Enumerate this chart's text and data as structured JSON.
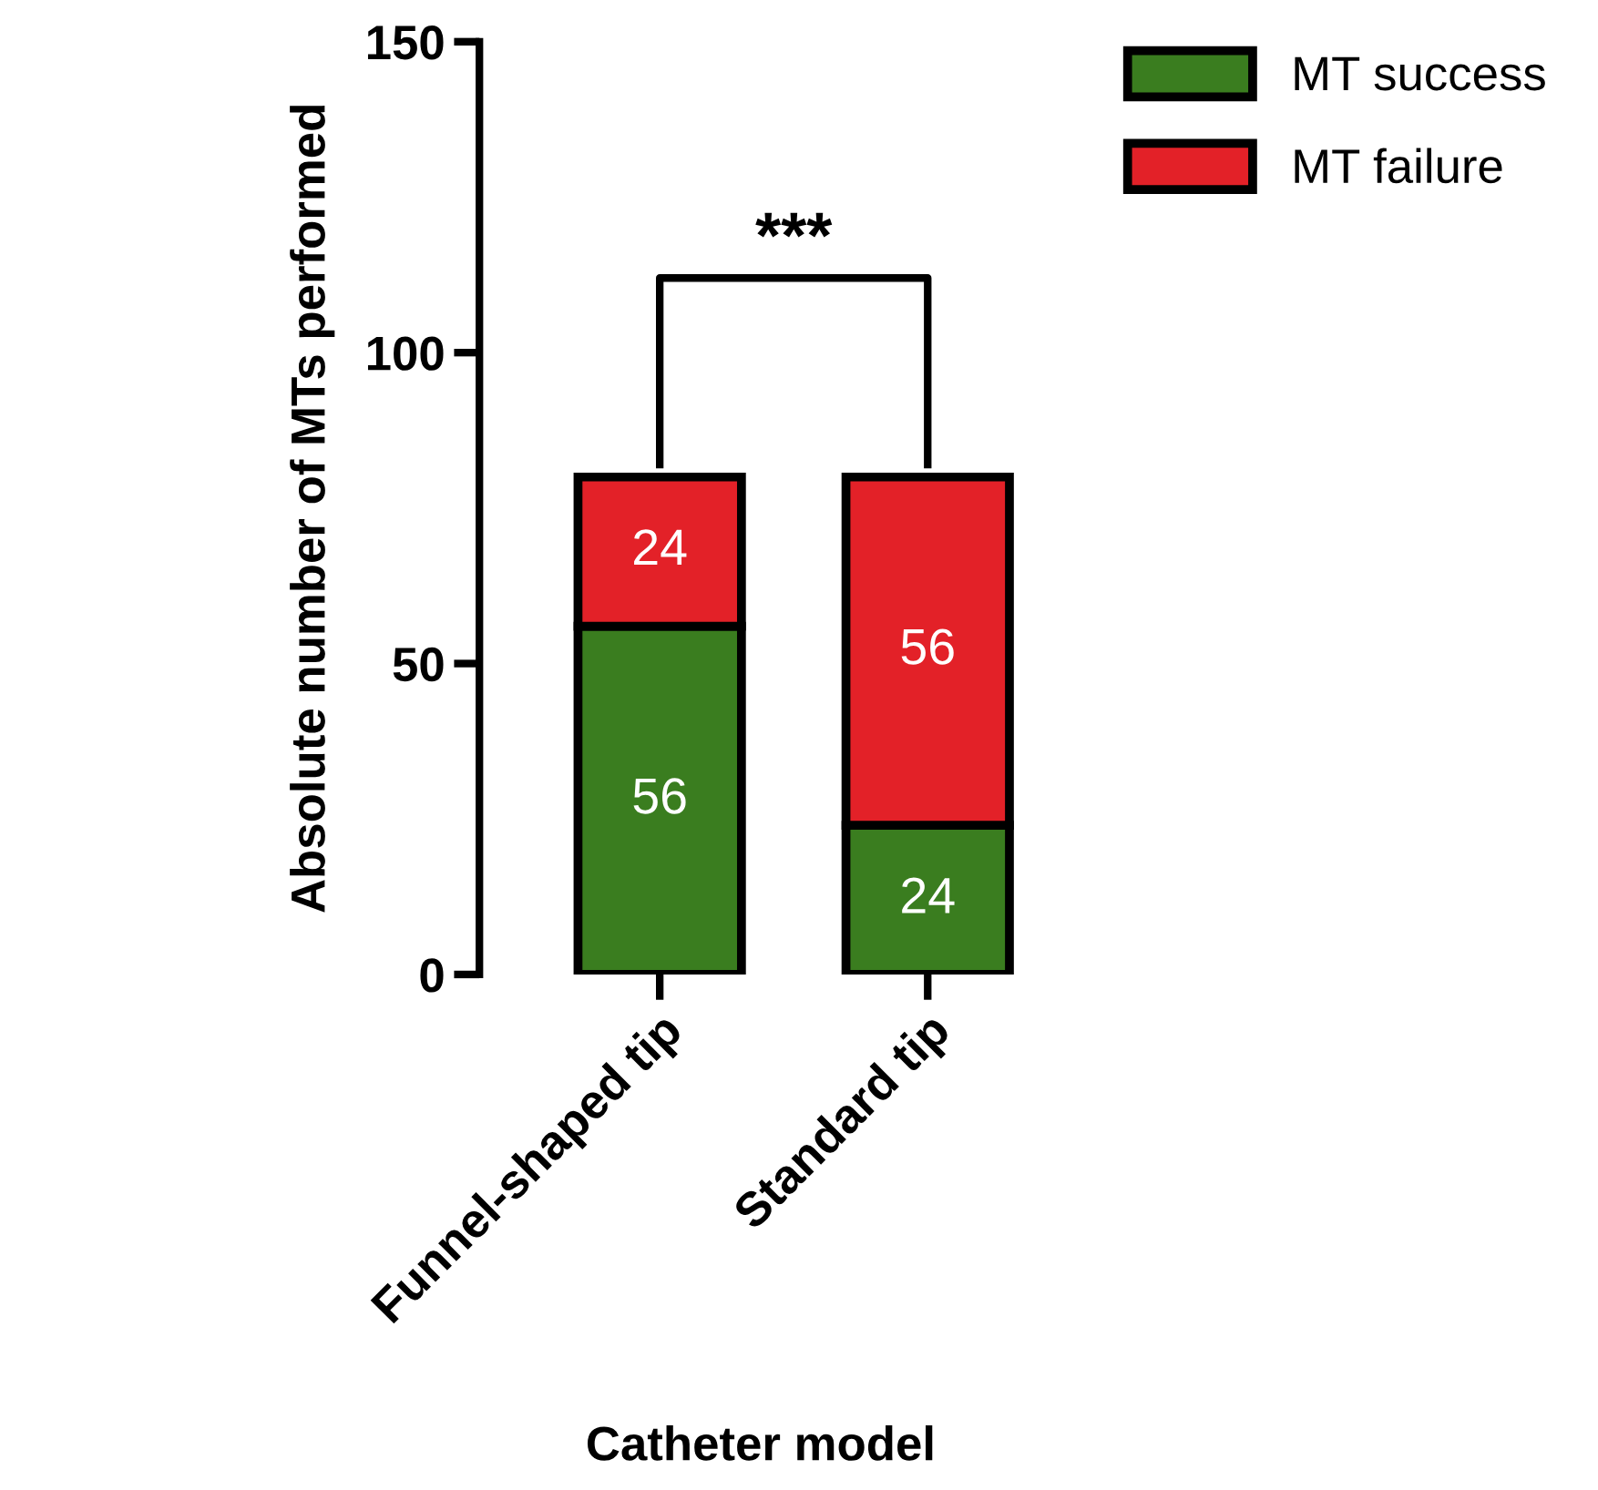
{
  "chart_data": {
    "type": "bar",
    "stacked": true,
    "xlabel": "Catheter model",
    "ylabel": "Absolute number of MTs performed",
    "categories": [
      "Funnel-shaped tip",
      "Standard tip"
    ],
    "series": [
      {
        "name": "MT success",
        "color": "#3a7d1f",
        "values": [
          56,
          24
        ]
      },
      {
        "name": "MT failure",
        "color": "#e32128",
        "values": [
          24,
          56
        ]
      }
    ],
    "ylim": [
      0,
      150
    ],
    "yticks": [
      0,
      50,
      100,
      150
    ],
    "data_labels": true,
    "grid": false,
    "legend": "top right",
    "annotations": [
      "***"
    ]
  }
}
